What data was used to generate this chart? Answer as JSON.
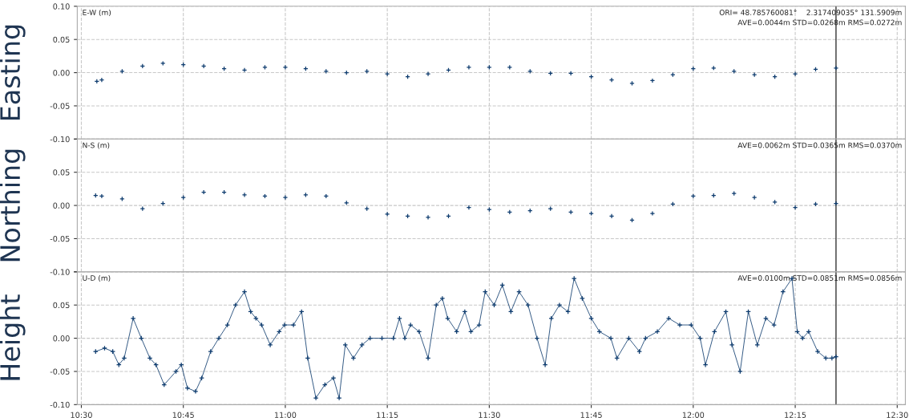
{
  "chart_data": [
    {
      "type": "scatter",
      "ylabel": "Easting",
      "annotations": [
        "E-W (m)",
        "ORI= 48.785760081°    2.317409035° 131.5909m",
        "AVE=0.0044m STD=0.0268m RMS=0.0272m"
      ],
      "color": "#0d3b6e",
      "marker": "cross",
      "grid": true,
      "tick_labels": "y",
      "x": [
        10.538,
        10.55,
        10.6,
        10.65,
        10.7,
        10.75,
        10.8,
        10.85,
        10.9,
        10.95,
        11.0,
        11.05,
        11.1,
        11.15,
        11.2,
        11.25,
        11.3,
        11.35,
        11.4,
        11.45,
        11.5,
        11.55,
        11.6,
        11.65,
        11.7,
        11.75,
        11.8,
        11.85,
        11.9,
        11.95,
        12.0,
        12.05,
        12.1,
        12.15,
        12.2,
        12.25,
        12.3,
        12.35
      ],
      "values": [
        -0.013,
        -0.011,
        0.002,
        0.01,
        0.014,
        0.012,
        0.01,
        0.006,
        0.004,
        0.008,
        0.008,
        0.006,
        0.002,
        0.0,
        0.002,
        -0.002,
        -0.006,
        -0.002,
        0.004,
        0.008,
        0.008,
        0.008,
        0.002,
        -0.001,
        -0.001,
        -0.006,
        -0.011,
        -0.016,
        -0.012,
        -0.003,
        0.006,
        0.007,
        0.002,
        -0.003,
        -0.006,
        -0.002,
        0.005,
        0.007
      ],
      "xlim": [
        10.49,
        12.52
      ],
      "xticks": [
        {
          "value": 10.5,
          "label": null
        },
        {
          "value": 10.75,
          "label": null
        },
        {
          "value": 11.0,
          "label": null
        },
        {
          "value": 11.25,
          "label": null
        },
        {
          "value": 11.5,
          "label": null
        },
        {
          "value": 11.75,
          "label": null
        },
        {
          "value": 12.0,
          "label": null
        },
        {
          "value": 12.25,
          "label": null
        },
        {
          "value": 12.5,
          "label": null
        }
      ],
      "ylim": [
        -0.1,
        0.1
      ],
      "yticks": [
        {
          "value": -0.1,
          "label": "-0.10"
        },
        {
          "value": -0.05,
          "label": "-0.05"
        },
        {
          "value": 0.0,
          "label": "0.00"
        },
        {
          "value": 0.05,
          "label": "0.05"
        },
        {
          "value": 0.1,
          "label": "0.10"
        }
      ],
      "ref_lines": [
        {
          "axis": "x",
          "value": 12.35,
          "color": "#000000"
        }
      ]
    },
    {
      "type": "scatter",
      "ylabel": "Northing",
      "annotations": [
        "N-S (m)",
        "AVE=0.0062m STD=0.0365m RMS=0.0370m"
      ],
      "color": "#0d3b6e",
      "marker": "cross",
      "grid": true,
      "tick_labels": "y",
      "x": [
        10.535,
        10.55,
        10.6,
        10.65,
        10.7,
        10.75,
        10.8,
        10.85,
        10.9,
        10.95,
        11.0,
        11.05,
        11.1,
        11.15,
        11.2,
        11.25,
        11.3,
        11.35,
        11.4,
        11.45,
        11.5,
        11.55,
        11.6,
        11.65,
        11.7,
        11.75,
        11.8,
        11.85,
        11.9,
        11.95,
        12.0,
        12.05,
        12.1,
        12.15,
        12.2,
        12.25,
        12.3,
        12.35
      ],
      "values": [
        0.015,
        0.014,
        0.01,
        -0.005,
        0.003,
        0.012,
        0.02,
        0.02,
        0.016,
        0.014,
        0.012,
        0.016,
        0.014,
        0.004,
        -0.005,
        -0.013,
        -0.016,
        -0.018,
        -0.016,
        -0.003,
        -0.006,
        -0.01,
        -0.008,
        -0.005,
        -0.01,
        -0.012,
        -0.016,
        -0.022,
        -0.012,
        0.002,
        0.014,
        0.015,
        0.018,
        0.012,
        0.005,
        -0.003,
        0.002,
        0.003
      ],
      "xlim": [
        10.49,
        12.52
      ],
      "xticks": [
        {
          "value": 10.5,
          "label": null
        },
        {
          "value": 10.75,
          "label": null
        },
        {
          "value": 11.0,
          "label": null
        },
        {
          "value": 11.25,
          "label": null
        },
        {
          "value": 11.5,
          "label": null
        },
        {
          "value": 11.75,
          "label": null
        },
        {
          "value": 12.0,
          "label": null
        },
        {
          "value": 12.25,
          "label": null
        },
        {
          "value": 12.5,
          "label": null
        }
      ],
      "ylim": [
        -0.1,
        0.1
      ],
      "yticks": [
        {
          "value": -0.1,
          "label": "-0.10"
        },
        {
          "value": -0.05,
          "label": "-0.05"
        },
        {
          "value": 0.0,
          "label": "0.00"
        },
        {
          "value": 0.05,
          "label": "0.05"
        },
        {
          "value": 0.1,
          "label": null
        }
      ],
      "ref_lines": [
        {
          "axis": "x",
          "value": 12.35,
          "color": "#000000"
        }
      ]
    },
    {
      "type": "line",
      "ylabel": "Height",
      "annotations": [
        "U-D (m)",
        "AVE=0.0100m STD=0.0851m RMS=0.0856m"
      ],
      "color": "#0d3b6e",
      "marker": "cross",
      "line_style": "solid",
      "grid": true,
      "x": [
        10.535,
        10.557,
        10.577,
        10.592,
        10.605,
        10.627,
        10.647,
        10.668,
        10.683,
        10.703,
        10.732,
        10.745,
        10.76,
        10.78,
        10.795,
        10.817,
        10.837,
        10.858,
        10.878,
        10.9,
        10.915,
        10.928,
        10.942,
        10.963,
        10.985,
        10.998,
        11.02,
        11.04,
        11.055,
        11.075,
        11.097,
        11.118,
        11.132,
        11.147,
        11.167,
        11.188,
        11.208,
        11.237,
        11.265,
        11.28,
        11.293,
        11.307,
        11.328,
        11.35,
        11.37,
        11.385,
        11.398,
        11.42,
        11.44,
        11.455,
        11.475,
        11.49,
        11.512,
        11.532,
        11.553,
        11.573,
        11.595,
        11.617,
        11.637,
        11.652,
        11.672,
        11.693,
        11.708,
        11.728,
        11.75,
        11.77,
        11.798,
        11.813,
        11.842,
        11.868,
        11.883,
        11.912,
        11.94,
        11.967,
        11.995,
        12.017,
        12.03,
        12.052,
        12.08,
        12.095,
        12.115,
        12.135,
        12.157,
        12.178,
        12.198,
        12.22,
        12.242,
        12.255,
        12.268,
        12.283,
        12.305,
        12.325,
        12.34,
        12.35
      ],
      "values": [
        -0.02,
        -0.015,
        -0.02,
        -0.04,
        -0.03,
        0.03,
        0.0,
        -0.03,
        -0.04,
        -0.07,
        -0.05,
        -0.04,
        -0.075,
        -0.08,
        -0.06,
        -0.02,
        0.0,
        0.02,
        0.05,
        0.07,
        0.04,
        0.03,
        0.02,
        -0.01,
        0.01,
        0.02,
        0.02,
        0.04,
        -0.03,
        -0.09,
        -0.07,
        -0.06,
        -0.09,
        -0.01,
        -0.03,
        -0.01,
        0.0,
        0.0,
        0.0,
        0.03,
        0.0,
        0.02,
        0.01,
        -0.03,
        0.05,
        0.06,
        0.03,
        0.01,
        0.04,
        0.01,
        0.02,
        0.07,
        0.05,
        0.08,
        0.04,
        0.07,
        0.05,
        0.0,
        -0.04,
        0.03,
        0.05,
        0.04,
        0.09,
        0.06,
        0.03,
        0.01,
        0.0,
        -0.03,
        0.0,
        -0.02,
        0.0,
        0.01,
        0.03,
        0.02,
        0.02,
        0.0,
        -0.04,
        0.01,
        0.04,
        -0.01,
        -0.05,
        0.04,
        -0.01,
        0.03,
        0.02,
        0.07,
        0.09,
        0.01,
        0.0,
        0.01,
        -0.02,
        -0.03,
        -0.03,
        -0.028
      ],
      "xlim": [
        10.49,
        12.52
      ],
      "xticks": [
        {
          "value": 10.5,
          "label": "10:30"
        },
        {
          "value": 10.75,
          "label": "10:45"
        },
        {
          "value": 11.0,
          "label": "11:00"
        },
        {
          "value": 11.25,
          "label": "11:15"
        },
        {
          "value": 11.5,
          "label": "11:30"
        },
        {
          "value": 11.75,
          "label": "11:45"
        },
        {
          "value": 12.0,
          "label": "12:00"
        },
        {
          "value": 12.25,
          "label": "12:15"
        },
        {
          "value": 12.5,
          "label": "12:30"
        }
      ],
      "ylim": [
        -0.1,
        0.1
      ],
      "yticks": [
        {
          "value": -0.1,
          "label": "-0.10"
        },
        {
          "value": -0.05,
          "label": "-0.05"
        },
        {
          "value": 0.0,
          "label": "0.00"
        },
        {
          "value": 0.05,
          "label": "0.05"
        },
        {
          "value": 0.1,
          "label": null
        }
      ],
      "ref_lines": [
        {
          "axis": "x",
          "value": 12.35,
          "color": "#000000"
        }
      ]
    }
  ]
}
